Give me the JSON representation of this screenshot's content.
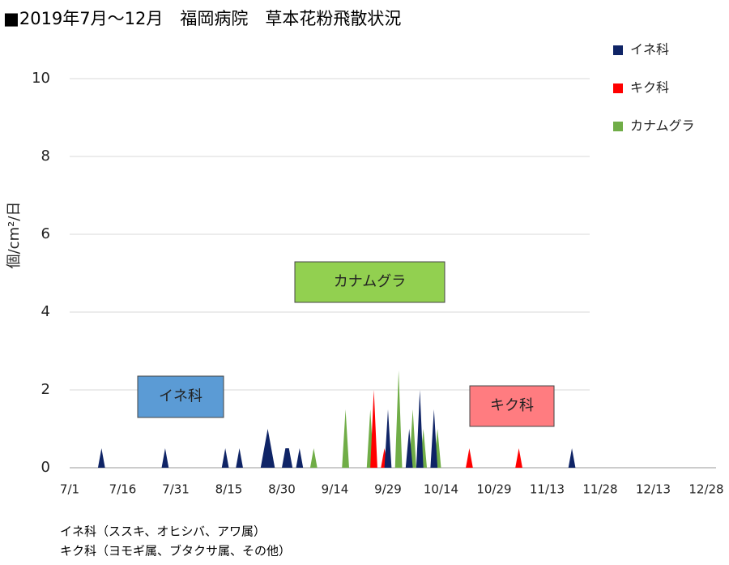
{
  "chart_data": {
    "type": "area",
    "title": "■2019年7月～12月　福岡病院　草本花粉飛散状況",
    "y_label": "個/cm²/日",
    "xlim": [
      0,
      180
    ],
    "xticks": [
      {
        "value": 0,
        "label": "7/1"
      },
      {
        "value": 15,
        "label": "7/16"
      },
      {
        "value": 30,
        "label": "7/31"
      },
      {
        "value": 45,
        "label": "8/15"
      },
      {
        "value": 60,
        "label": "8/30"
      },
      {
        "value": 75,
        "label": "9/14"
      },
      {
        "value": 90,
        "label": "9/29"
      },
      {
        "value": 105,
        "label": "10/14"
      },
      {
        "value": 120,
        "label": "10/29"
      },
      {
        "value": 135,
        "label": "11/13"
      },
      {
        "value": 150,
        "label": "11/28"
      },
      {
        "value": 165,
        "label": "12/13"
      },
      {
        "value": 180,
        "label": "12/28"
      }
    ],
    "ylim": [
      0,
      10
    ],
    "yticks": [
      0,
      2,
      4,
      6,
      8,
      10
    ],
    "grid": true,
    "legend": "top-right",
    "series": [
      {
        "name": "イネ科",
        "color": "#0f2466",
        "x": [
          8,
          9,
          10,
          26,
          27,
          28,
          43,
          44,
          45,
          47,
          48,
          49,
          54,
          56,
          58,
          60,
          61,
          62,
          63,
          64,
          65,
          66,
          89,
          90,
          91,
          95,
          96,
          97,
          98,
          99,
          100,
          102,
          103,
          104,
          141,
          142,
          143
        ],
        "values": [
          0,
          0.5,
          0,
          0,
          0.5,
          0,
          0,
          0.5,
          0,
          0,
          0.5,
          0,
          0,
          1.0,
          0,
          0,
          0.5,
          0.5,
          0,
          0,
          0.5,
          0,
          0,
          1.5,
          0,
          0,
          1.0,
          0,
          0,
          2.0,
          0,
          0,
          1.5,
          0,
          0,
          0.5,
          0
        ]
      },
      {
        "name": "キク科",
        "color": "#ff0000",
        "x": [
          85,
          86,
          87,
          88,
          89,
          90,
          112,
          113,
          114,
          126,
          127,
          128
        ],
        "values": [
          0,
          2.0,
          0,
          0,
          0.5,
          0,
          0,
          0.5,
          0,
          0,
          0.5,
          0
        ]
      },
      {
        "name": "カナムグラ",
        "color": "#70ad47",
        "x": [
          68,
          69,
          70,
          77,
          78,
          79,
          84,
          85,
          86,
          92,
          93,
          94,
          96,
          97,
          98,
          99,
          100,
          101,
          103,
          104,
          105
        ],
        "values": [
          0,
          0.5,
          0,
          0,
          1.5,
          0,
          0,
          1.5,
          0,
          0,
          2.5,
          0,
          0,
          1.5,
          0,
          0,
          1.0,
          0,
          0,
          1.0,
          0
        ]
      }
    ],
    "annotations": [
      {
        "text": "イネ科",
        "color": "#5b9bd5"
      },
      {
        "text": "カナムグラ",
        "color": "#92d050"
      },
      {
        "text": "キク科",
        "color": "#ff7c80"
      }
    ],
    "notes": [
      "イネ科（ススキ、オヒシバ、アワ属）",
      "キク科（ヨモギ属、ブタクサ属、その他）"
    ]
  }
}
